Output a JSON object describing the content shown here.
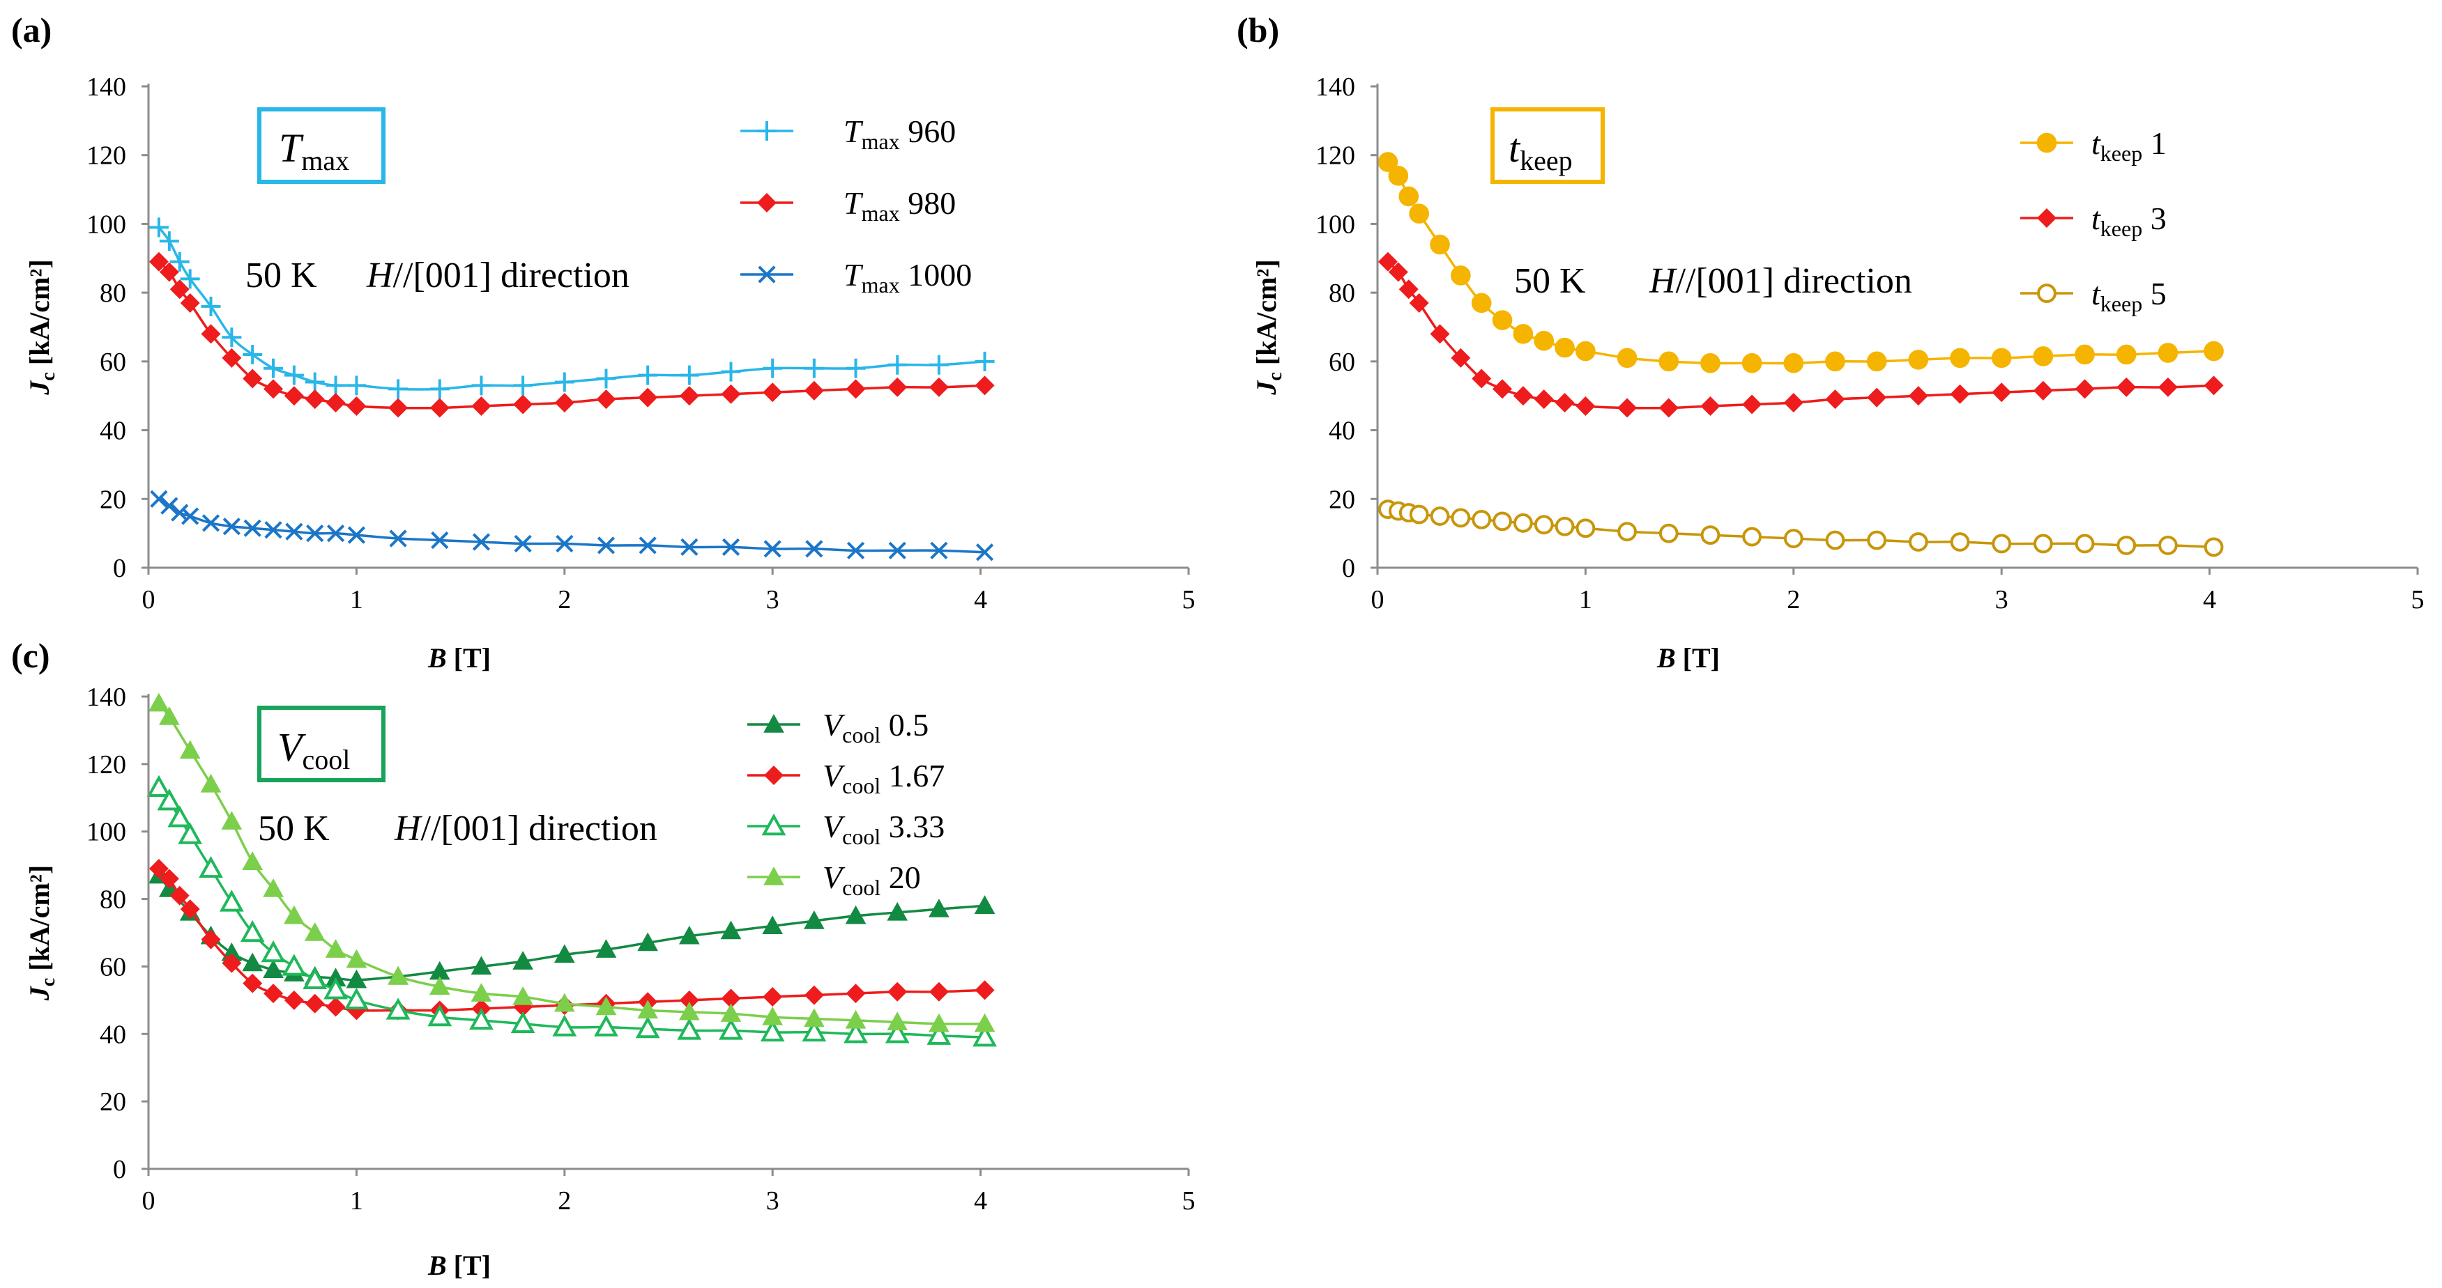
{
  "chart_data": [
    {
      "panel": "(a)",
      "type": "line",
      "box_label": {
        "main": "T",
        "sub": "max"
      },
      "annotation": {
        "temp": "50 K",
        "field": "H",
        "direction": "//[001] direction"
      },
      "xlabel": {
        "main": "B",
        "unit": "[T]"
      },
      "ylabel": {
        "main": "J",
        "sub": "c",
        "unit": "[kA/cm²]"
      },
      "xlim": [
        0,
        5
      ],
      "ylim": [
        0,
        140
      ],
      "xticks": [
        0,
        1,
        2,
        3,
        4,
        5
      ],
      "yticks": [
        0,
        20,
        40,
        60,
        80,
        100,
        120,
        140
      ],
      "colors": {
        "box": "#29b6e8"
      },
      "series": [
        {
          "name": "T max 960",
          "label": {
            "main": "T",
            "sub": "max",
            "value": "960"
          },
          "color": "#29b6e8",
          "marker": "plus",
          "x": [
            0.05,
            0.1,
            0.15,
            0.2,
            0.3,
            0.4,
            0.5,
            0.6,
            0.7,
            0.8,
            0.9,
            1.0,
            1.2,
            1.4,
            1.6,
            1.8,
            2.0,
            2.2,
            2.4,
            2.6,
            2.8,
            3.0,
            3.2,
            3.4,
            3.6,
            3.8,
            4.02
          ],
          "y": [
            99,
            95,
            89,
            84,
            76,
            67,
            62,
            58,
            56,
            54,
            53,
            53,
            52,
            52,
            53,
            53,
            54,
            55,
            56,
            56,
            57,
            58,
            58,
            58,
            59,
            59,
            60
          ]
        },
        {
          "name": "T max 980",
          "label": {
            "main": "T",
            "sub": "max",
            "value": "980"
          },
          "color": "#ee1c1c",
          "marker": "diamond",
          "x": [
            0.05,
            0.1,
            0.15,
            0.2,
            0.3,
            0.4,
            0.5,
            0.6,
            0.7,
            0.8,
            0.9,
            1.0,
            1.2,
            1.4,
            1.6,
            1.8,
            2.0,
            2.2,
            2.4,
            2.6,
            2.8,
            3.0,
            3.2,
            3.4,
            3.6,
            3.8,
            4.02
          ],
          "y": [
            89,
            86,
            81,
            77,
            68,
            61,
            55,
            52,
            50,
            49,
            48,
            47,
            46.5,
            46.5,
            47,
            47.5,
            48,
            49,
            49.5,
            50,
            50.5,
            51,
            51.5,
            52,
            52.5,
            52.5,
            53
          ]
        },
        {
          "name": "T max 1000",
          "label": {
            "main": "T",
            "sub": "max",
            "value": "1000"
          },
          "color": "#1b76c8",
          "marker": "x",
          "x": [
            0.05,
            0.1,
            0.15,
            0.2,
            0.3,
            0.4,
            0.5,
            0.6,
            0.7,
            0.8,
            0.9,
            1.0,
            1.2,
            1.4,
            1.6,
            1.8,
            2.0,
            2.2,
            2.4,
            2.6,
            2.8,
            3.0,
            3.2,
            3.4,
            3.6,
            3.8,
            4.02
          ],
          "y": [
            20,
            18,
            16,
            15,
            13,
            12,
            11.5,
            11,
            10.5,
            10,
            10,
            9.5,
            8.5,
            8,
            7.5,
            7,
            7,
            6.5,
            6.5,
            6,
            6,
            5.5,
            5.5,
            5,
            5,
            5,
            4.5
          ]
        }
      ]
    },
    {
      "panel": "(b)",
      "type": "line",
      "box_label": {
        "main": "t",
        "sub": "keep"
      },
      "annotation": {
        "temp": "50 K",
        "field": "H",
        "direction": "//[001] direction"
      },
      "xlabel": {
        "main": "B",
        "unit": "[T]"
      },
      "ylabel": {
        "main": "J",
        "sub": "c",
        "unit": "[kA/cm²]"
      },
      "xlim": [
        0,
        5
      ],
      "ylim": [
        0,
        140
      ],
      "xticks": [
        0,
        1,
        2,
        3,
        4,
        5
      ],
      "yticks": [
        0,
        20,
        40,
        60,
        80,
        100,
        120,
        140
      ],
      "colors": {
        "box": "#f5b400"
      },
      "series": [
        {
          "name": "t keep 1",
          "label": {
            "main": "t",
            "sub": "keep",
            "value": "1"
          },
          "color": "#f5b400",
          "marker": "circle-filled",
          "x": [
            0.05,
            0.1,
            0.15,
            0.2,
            0.3,
            0.4,
            0.5,
            0.6,
            0.7,
            0.8,
            0.9,
            1.0,
            1.2,
            1.4,
            1.6,
            1.8,
            2.0,
            2.2,
            2.4,
            2.6,
            2.8,
            3.0,
            3.2,
            3.4,
            3.6,
            3.8,
            4.02
          ],
          "y": [
            118,
            114,
            108,
            103,
            94,
            85,
            77,
            72,
            68,
            66,
            64,
            63,
            61,
            60,
            59.5,
            59.5,
            59.5,
            60,
            60,
            60.5,
            61,
            61,
            61.5,
            62,
            62,
            62.5,
            63
          ]
        },
        {
          "name": "t keep 3",
          "label": {
            "main": "t",
            "sub": "keep",
            "value": "3"
          },
          "color": "#ee1c1c",
          "marker": "diamond",
          "x": [
            0.05,
            0.1,
            0.15,
            0.2,
            0.3,
            0.4,
            0.5,
            0.6,
            0.7,
            0.8,
            0.9,
            1.0,
            1.2,
            1.4,
            1.6,
            1.8,
            2.0,
            2.2,
            2.4,
            2.6,
            2.8,
            3.0,
            3.2,
            3.4,
            3.6,
            3.8,
            4.02
          ],
          "y": [
            89,
            86,
            81,
            77,
            68,
            61,
            55,
            52,
            50,
            49,
            48,
            47,
            46.5,
            46.5,
            47,
            47.5,
            48,
            49,
            49.5,
            50,
            50.5,
            51,
            51.5,
            52,
            52.5,
            52.5,
            53
          ]
        },
        {
          "name": "t keep 5",
          "label": {
            "main": "t",
            "sub": "keep",
            "value": "5"
          },
          "color": "#c8960a",
          "marker": "circle-open",
          "x": [
            0.05,
            0.1,
            0.15,
            0.2,
            0.3,
            0.4,
            0.5,
            0.6,
            0.7,
            0.8,
            0.9,
            1.0,
            1.2,
            1.4,
            1.6,
            1.8,
            2.0,
            2.2,
            2.4,
            2.6,
            2.8,
            3.0,
            3.2,
            3.4,
            3.6,
            3.8,
            4.02
          ],
          "y": [
            17,
            16.5,
            16,
            15.5,
            15,
            14.5,
            14,
            13.5,
            13,
            12.5,
            12,
            11.5,
            10.5,
            10,
            9.5,
            9,
            8.5,
            8,
            8,
            7.5,
            7.5,
            7,
            7,
            7,
            6.5,
            6.5,
            6
          ]
        }
      ]
    },
    {
      "panel": "(c)",
      "type": "line",
      "box_label": {
        "main": "V",
        "sub": "cool"
      },
      "annotation": {
        "temp": "50 K",
        "field": "H",
        "direction": "//[001] direction"
      },
      "xlabel": {
        "main": "B",
        "unit": "[T]"
      },
      "ylabel": {
        "main": "J",
        "sub": "c",
        "unit": "[kA/cm²]"
      },
      "xlim": [
        0,
        5
      ],
      "ylim": [
        0,
        140
      ],
      "xticks": [
        0,
        1,
        2,
        3,
        4,
        5
      ],
      "yticks": [
        0,
        20,
        40,
        60,
        80,
        100,
        120,
        140
      ],
      "colors": {
        "box": "#17a35a"
      },
      "series": [
        {
          "name": "V cool 0.5",
          "label": {
            "main": "V",
            "sub": "cool",
            "value": "0.5"
          },
          "color": "#138a42",
          "marker": "triangle-filled",
          "x": [
            0.05,
            0.1,
            0.2,
            0.3,
            0.4,
            0.5,
            0.6,
            0.7,
            0.8,
            0.9,
            1.0,
            1.2,
            1.4,
            1.6,
            1.8,
            2.0,
            2.2,
            2.4,
            2.6,
            2.8,
            3.0,
            3.2,
            3.4,
            3.6,
            3.8,
            4.02
          ],
          "y": [
            87,
            83,
            76,
            69,
            64,
            61,
            59,
            58,
            57,
            56.5,
            56,
            57,
            58.5,
            60,
            61.5,
            63.5,
            65,
            67,
            69,
            70.5,
            72,
            73.5,
            75,
            76,
            77,
            78
          ]
        },
        {
          "name": "V cool 1.67",
          "label": {
            "main": "V",
            "sub": "cool",
            "value": "1.67"
          },
          "color": "#ee1c1c",
          "marker": "diamond",
          "x": [
            0.05,
            0.1,
            0.15,
            0.2,
            0.3,
            0.4,
            0.5,
            0.6,
            0.7,
            0.8,
            0.9,
            1.0,
            1.2,
            1.4,
            1.6,
            1.8,
            2.0,
            2.2,
            2.4,
            2.6,
            2.8,
            3.0,
            3.2,
            3.4,
            3.6,
            3.8,
            4.02
          ],
          "y": [
            89,
            86,
            81,
            77,
            68,
            61,
            55,
            52,
            50,
            49,
            48,
            47,
            47,
            47,
            47.5,
            48,
            48.5,
            49,
            49.5,
            50,
            50.5,
            51,
            51.5,
            52,
            52.5,
            52.5,
            53
          ]
        },
        {
          "name": "V cool 3.33",
          "label": {
            "main": "V",
            "sub": "cool",
            "value": "3.33"
          },
          "color": "#1fb85a",
          "marker": "triangle-open",
          "x": [
            0.05,
            0.1,
            0.15,
            0.2,
            0.3,
            0.4,
            0.5,
            0.6,
            0.7,
            0.8,
            0.9,
            1.0,
            1.2,
            1.4,
            1.6,
            1.8,
            2.0,
            2.2,
            2.4,
            2.6,
            2.8,
            3.0,
            3.2,
            3.4,
            3.6,
            3.8,
            4.02
          ],
          "y": [
            113,
            109,
            104,
            99,
            89,
            79,
            70,
            64,
            60,
            56,
            53,
            50,
            47,
            45,
            44,
            43,
            42,
            42,
            41.5,
            41,
            41,
            40.5,
            40.5,
            40,
            40,
            39.5,
            39
          ]
        },
        {
          "name": "V cool 20",
          "label": {
            "main": "V",
            "sub": "cool",
            "value": "20"
          },
          "color": "#7ccf4a",
          "marker": "triangle-filled",
          "x": [
            0.05,
            0.1,
            0.2,
            0.3,
            0.4,
            0.5,
            0.6,
            0.7,
            0.8,
            0.9,
            1.0,
            1.2,
            1.4,
            1.6,
            1.8,
            2.0,
            2.2,
            2.4,
            2.6,
            2.8,
            3.0,
            3.2,
            3.4,
            3.6,
            3.8,
            4.02
          ],
          "y": [
            138,
            134,
            124,
            114,
            103,
            91,
            83,
            75,
            70,
            65,
            62,
            57,
            54,
            52,
            51,
            49,
            48,
            47,
            46.5,
            46,
            45,
            44.5,
            44,
            43.5,
            43,
            43
          ]
        }
      ]
    }
  ]
}
